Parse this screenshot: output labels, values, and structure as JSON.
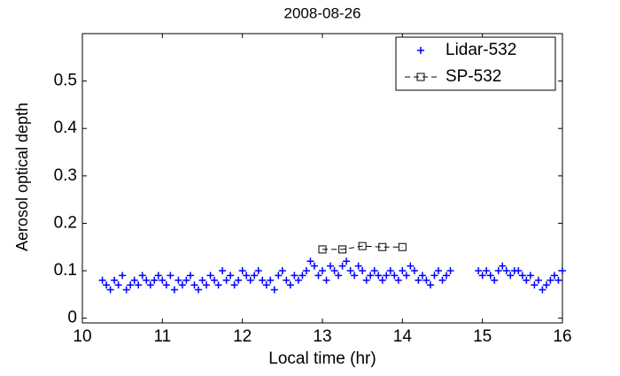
{
  "chart_data": {
    "type": "scatter",
    "title": "2008-08-26",
    "x_label": "Local time (hr)",
    "y_label": "Aerosol optical depth",
    "xlim": [
      10,
      16
    ],
    "ylim": [
      -0.01,
      0.6
    ],
    "xticks": [
      10,
      11,
      12,
      13,
      14,
      15,
      16
    ],
    "yticks": [
      0,
      0.1,
      0.2,
      0.3,
      0.4,
      0.5
    ],
    "legend": "upper right",
    "series": [
      {
        "name": "Lidar-532",
        "color": "#0000ff",
        "marker": "plus",
        "line": "none",
        "x": [
          10.25,
          10.3,
          10.35,
          10.4,
          10.45,
          10.5,
          10.55,
          10.6,
          10.65,
          10.7,
          10.75,
          10.8,
          10.85,
          10.9,
          10.95,
          11,
          11.05,
          11.1,
          11.15,
          11.2,
          11.25,
          11.3,
          11.35,
          11.4,
          11.45,
          11.5,
          11.55,
          11.6,
          11.65,
          11.7,
          11.75,
          11.8,
          11.85,
          11.9,
          11.95,
          12,
          12.05,
          12.1,
          12.15,
          12.2,
          12.25,
          12.3,
          12.35,
          12.4,
          12.45,
          12.5,
          12.55,
          12.6,
          12.65,
          12.7,
          12.75,
          12.8,
          12.85,
          12.9,
          12.95,
          13,
          13.05,
          13.1,
          13.15,
          13.2,
          13.25,
          13.3,
          13.35,
          13.4,
          13.45,
          13.5,
          13.55,
          13.6,
          13.65,
          13.7,
          13.75,
          13.8,
          13.85,
          13.9,
          13.95,
          14,
          14.05,
          14.1,
          14.15,
          14.2,
          14.25,
          14.3,
          14.35,
          14.4,
          14.45,
          14.5,
          14.55,
          14.6,
          14.95,
          15,
          15.05,
          15.1,
          15.15,
          15.2,
          15.25,
          15.3,
          15.35,
          15.4,
          15.45,
          15.5,
          15.55,
          15.6,
          15.65,
          15.7,
          15.75,
          15.8,
          15.85,
          15.9,
          15.95,
          16
        ],
        "values": [
          0.08,
          0.07,
          0.06,
          0.08,
          0.07,
          0.09,
          0.06,
          0.07,
          0.08,
          0.07,
          0.09,
          0.08,
          0.07,
          0.08,
          0.09,
          0.08,
          0.07,
          0.09,
          0.06,
          0.08,
          0.07,
          0.08,
          0.09,
          0.07,
          0.06,
          0.08,
          0.07,
          0.09,
          0.08,
          0.07,
          0.1,
          0.08,
          0.09,
          0.07,
          0.08,
          0.1,
          0.09,
          0.08,
          0.09,
          0.1,
          0.08,
          0.07,
          0.08,
          0.06,
          0.09,
          0.1,
          0.08,
          0.07,
          0.09,
          0.08,
          0.09,
          0.1,
          0.12,
          0.11,
          0.09,
          0.1,
          0.08,
          0.11,
          0.1,
          0.09,
          0.11,
          0.12,
          0.1,
          0.09,
          0.11,
          0.1,
          0.08,
          0.09,
          0.1,
          0.09,
          0.08,
          0.09,
          0.1,
          0.09,
          0.08,
          0.1,
          0.09,
          0.11,
          0.1,
          0.08,
          0.09,
          0.08,
          0.07,
          0.09,
          0.1,
          0.08,
          0.09,
          0.1,
          0.1,
          0.09,
          0.1,
          0.09,
          0.08,
          0.1,
          0.11,
          0.1,
          0.09,
          0.1,
          0.1,
          0.09,
          0.08,
          0.09,
          0.07,
          0.08,
          0.06,
          0.07,
          0.08,
          0.09,
          0.08,
          0.1
        ]
      },
      {
        "name": "SP-532",
        "color": "#000000",
        "marker": "square",
        "line": "dashed",
        "x": [
          13,
          13.25,
          13.5,
          13.75,
          14
        ],
        "values": [
          0.145,
          0.145,
          0.152,
          0.15,
          0.15
        ]
      }
    ]
  }
}
